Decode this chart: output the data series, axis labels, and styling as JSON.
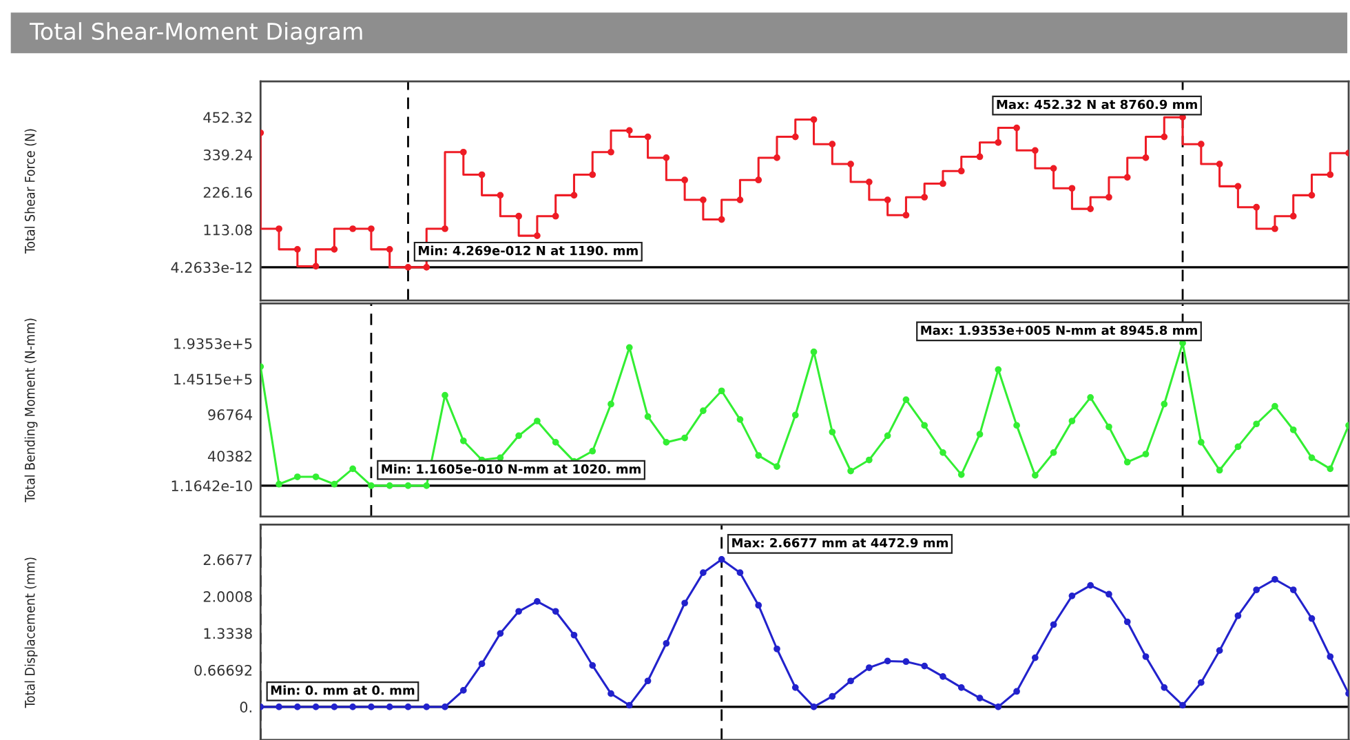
{
  "chart_data": [
    {
      "type": "step",
      "title": "Total Shear-Moment Diagram",
      "ylabel": "Total Shear Force (N)",
      "marker": "circle",
      "tick_labels": "y",
      "categories": [
        null,
        null,
        null,
        null,
        null,
        null,
        null,
        null,
        null,
        null,
        null,
        null,
        null,
        null,
        null,
        null,
        null,
        null,
        null,
        null,
        null,
        null,
        null,
        null,
        null,
        null,
        null,
        null,
        null,
        null,
        null,
        null,
        null,
        null,
        null,
        null,
        null,
        null,
        null,
        null,
        null,
        null,
        null,
        null,
        null,
        null,
        null,
        null,
        null,
        null,
        null,
        null,
        null,
        null,
        null,
        null,
        null,
        null,
        null,
        null
      ],
      "ylim": [
        -100,
        560
      ],
      "yticks": [
        4.2633e-12,
        113.08,
        226.16,
        339.24,
        452.32
      ],
      "series": [
        {
          "color": "#ee1c25",
          "values": [
            405,
            116,
            54,
            3,
            54,
            116,
            116,
            54,
            0,
            0,
            116,
            347,
            279,
            217,
            154,
            95,
            154,
            217,
            279,
            347,
            412,
            393,
            330,
            263,
            203,
            144,
            203,
            263,
            330,
            393,
            445,
            371,
            311,
            257,
            203,
            157,
            211,
            252,
            290,
            333,
            376,
            420,
            352,
            298,
            238,
            176,
            211,
            271,
            330,
            393,
            452,
            371,
            311,
            244,
            181,
            116,
            154,
            217,
            279,
            344
          ]
        }
      ],
      "ref_lines": [
        {
          "axis": "y",
          "value": 0,
          "color": "#000000",
          "line_style": "solid"
        }
      ],
      "annotations": [
        "Min: 4.269e-012 N at 1190. mm",
        "Max: 452.32 N at 8760.9 mm"
      ]
    },
    {
      "type": "line",
      "ylabel": "Total Bending Moment (N-mm)",
      "marker": "circle",
      "tick_labels": "y",
      "categories": [
        null,
        null,
        null,
        null,
        null,
        null,
        null,
        null,
        null,
        null,
        null,
        null,
        null,
        null,
        null,
        null,
        null,
        null,
        null,
        null,
        null,
        null,
        null,
        null,
        null,
        null,
        null,
        null,
        null,
        null,
        null,
        null,
        null,
        null,
        null,
        null,
        null,
        null,
        null,
        null,
        null,
        null,
        null,
        null,
        null,
        null,
        null,
        null,
        null,
        null,
        null,
        null,
        null,
        null,
        null,
        null,
        null,
        null,
        null,
        null
      ],
      "ylim": [
        -42000,
        248000
      ],
      "yticks": [
        1.1642e-10,
        40382,
        96764,
        {
          "value": 145150,
          "label": "1.4515e+5"
        },
        {
          "value": 193530,
          "label": "1.9353e+5"
        }
      ],
      "series": [
        {
          "color": "#33ee33",
          "values": [
            162000,
            2000,
            12000,
            12000,
            2000,
            23000,
            0,
            0,
            0,
            0,
            123000,
            61000,
            35000,
            38000,
            68000,
            88000,
            59000,
            33000,
            47000,
            111000,
            188000,
            94000,
            59000,
            65000,
            102000,
            129000,
            90000,
            41000,
            26000,
            96000,
            182000,
            73000,
            20000,
            35000,
            68000,
            117000,
            82000,
            45000,
            15000,
            70000,
            158000,
            82000,
            14000,
            45000,
            88000,
            120000,
            80000,
            32000,
            43000,
            111000,
            194000,
            59000,
            21000,
            53000,
            84000,
            108000,
            76000,
            38000,
            23000,
            82000
          ]
        }
      ],
      "ref_lines": [
        {
          "axis": "y",
          "value": 0,
          "color": "#000000",
          "line_style": "solid"
        }
      ],
      "annotations": [
        "Min: 1.1605e-010 N-mm at 1020. mm",
        "Max: 1.9353e+005 N-mm at 8945.8 mm"
      ]
    },
    {
      "type": "line",
      "ylabel": "Total Displacement (mm)",
      "marker": "circle",
      "tick_labels": "y",
      "categories": [
        null,
        null,
        null,
        null,
        null,
        null,
        null,
        null,
        null,
        null,
        null,
        null,
        null,
        null,
        null,
        null,
        null,
        null,
        null,
        null,
        null,
        null,
        null,
        null,
        null,
        null,
        null,
        null,
        null,
        null,
        null,
        null,
        null,
        null,
        null,
        null,
        null,
        null,
        null,
        null,
        null,
        null,
        null,
        null,
        null,
        null,
        null,
        null,
        null,
        null,
        null,
        null,
        null,
        null,
        null,
        null,
        null,
        null,
        null,
        null
      ],
      "ylim": [
        -0.6,
        3.3
      ],
      "yticks": [
        {
          "value": 0,
          "label": "0."
        },
        0.66692,
        1.3338,
        2.0008,
        2.6677
      ],
      "series": [
        {
          "color": "#2222cc",
          "values": [
            0,
            0,
            0,
            0,
            0,
            0,
            0,
            0,
            0,
            0,
            0,
            0.3,
            0.78,
            1.33,
            1.73,
            1.91,
            1.73,
            1.3,
            0.75,
            0.24,
            0.03,
            0.47,
            1.15,
            1.88,
            2.43,
            2.67,
            2.43,
            1.84,
            1.05,
            0.35,
            0,
            0.19,
            0.47,
            0.71,
            0.83,
            0.82,
            0.74,
            0.55,
            0.35,
            0.16,
            0,
            0.28,
            0.89,
            1.49,
            2.01,
            2.2,
            2.04,
            1.54,
            0.91,
            0.35,
            0.03,
            0.44,
            1.02,
            1.65,
            2.12,
            2.31,
            2.12,
            1.6,
            0.91,
            0.24
          ]
        }
      ],
      "ref_lines": [
        {
          "axis": "y",
          "value": 0,
          "color": "#000000",
          "line_style": "solid"
        }
      ],
      "annotations": [
        "Min: 0. mm at 0. mm",
        "Max: 2.6677 mm at 4472.9 mm"
      ]
    }
  ]
}
